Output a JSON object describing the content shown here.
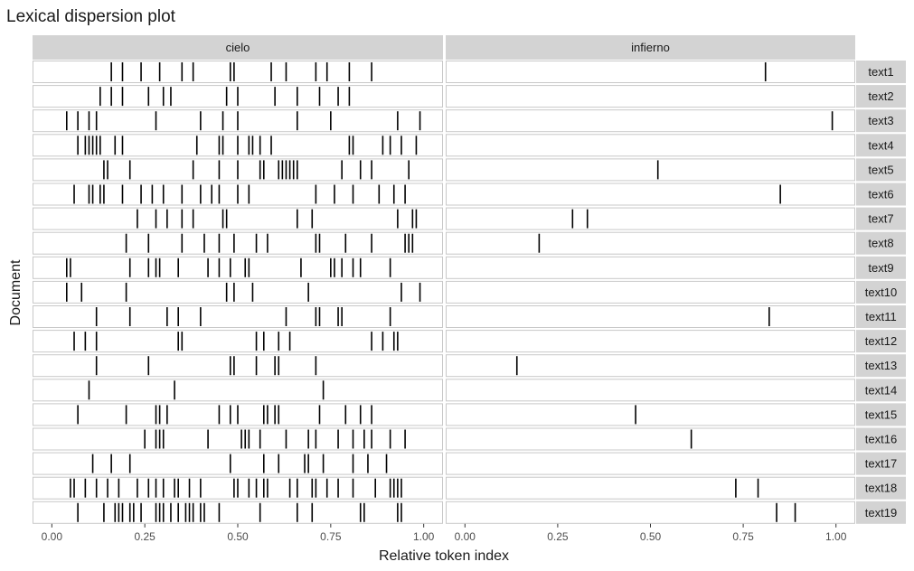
{
  "chart_data": {
    "type": "lexical-dispersion",
    "title": "Lexical dispersion plot",
    "xlabel": "Relative token index",
    "ylabel": "Document",
    "xlim": [
      0,
      1
    ],
    "x_ticks": [
      "0.00",
      "0.25",
      "0.50",
      "0.75",
      "1.00"
    ],
    "x_tick_values": [
      0,
      0.25,
      0.5,
      0.75,
      1.0
    ],
    "grid": true,
    "strip_fill": "#d3d3d3",
    "mark_color": "#000000",
    "facets": [
      "cielo",
      "infierno"
    ],
    "documents": [
      "text1",
      "text2",
      "text3",
      "text4",
      "text5",
      "text6",
      "text7",
      "text8",
      "text9",
      "text10",
      "text11",
      "text12",
      "text13",
      "text14",
      "text15",
      "text16",
      "text17",
      "text18",
      "text19"
    ],
    "positions": {
      "cielo": [
        [
          0.16,
          0.19,
          0.24,
          0.29,
          0.35,
          0.38,
          0.48,
          0.49,
          0.59,
          0.63,
          0.71,
          0.74,
          0.8,
          0.86
        ],
        [
          0.13,
          0.16,
          0.19,
          0.26,
          0.3,
          0.32,
          0.47,
          0.5,
          0.6,
          0.66,
          0.72,
          0.77,
          0.8
        ],
        [
          0.04,
          0.07,
          0.1,
          0.12,
          0.28,
          0.4,
          0.46,
          0.5,
          0.66,
          0.75,
          0.93,
          0.99
        ],
        [
          0.07,
          0.09,
          0.1,
          0.11,
          0.12,
          0.13,
          0.17,
          0.19,
          0.39,
          0.45,
          0.46,
          0.5,
          0.53,
          0.54,
          0.56,
          0.59,
          0.8,
          0.81,
          0.89,
          0.91,
          0.94,
          0.98
        ],
        [
          0.14,
          0.15,
          0.21,
          0.38,
          0.45,
          0.5,
          0.56,
          0.57,
          0.61,
          0.62,
          0.63,
          0.64,
          0.65,
          0.66,
          0.78,
          0.83,
          0.86,
          0.96
        ],
        [
          0.06,
          0.1,
          0.11,
          0.13,
          0.14,
          0.19,
          0.24,
          0.27,
          0.3,
          0.35,
          0.4,
          0.43,
          0.45,
          0.5,
          0.53,
          0.71,
          0.76,
          0.81,
          0.88,
          0.92,
          0.95
        ],
        [
          0.23,
          0.28,
          0.31,
          0.35,
          0.38,
          0.46,
          0.47,
          0.66,
          0.7,
          0.93,
          0.97,
          0.98
        ],
        [
          0.2,
          0.26,
          0.35,
          0.41,
          0.45,
          0.49,
          0.55,
          0.58,
          0.71,
          0.72,
          0.79,
          0.86,
          0.95,
          0.96,
          0.97
        ],
        [
          0.04,
          0.05,
          0.21,
          0.26,
          0.28,
          0.29,
          0.34,
          0.42,
          0.45,
          0.48,
          0.52,
          0.53,
          0.67,
          0.75,
          0.76,
          0.78,
          0.81,
          0.83,
          0.91
        ],
        [
          0.04,
          0.08,
          0.2,
          0.47,
          0.49,
          0.54,
          0.69,
          0.94,
          0.99
        ],
        [
          0.12,
          0.21,
          0.31,
          0.34,
          0.4,
          0.63,
          0.71,
          0.72,
          0.77,
          0.78,
          0.91
        ],
        [
          0.06,
          0.09,
          0.12,
          0.34,
          0.35,
          0.55,
          0.57,
          0.61,
          0.64,
          0.86,
          0.89,
          0.92,
          0.93
        ],
        [
          0.12,
          0.26,
          0.48,
          0.49,
          0.55,
          0.6,
          0.61,
          0.71
        ],
        [
          0.1,
          0.33,
          0.73
        ],
        [
          0.07,
          0.2,
          0.28,
          0.29,
          0.31,
          0.45,
          0.48,
          0.5,
          0.57,
          0.58,
          0.6,
          0.61,
          0.72,
          0.79,
          0.83,
          0.86
        ],
        [
          0.25,
          0.28,
          0.29,
          0.3,
          0.42,
          0.51,
          0.52,
          0.53,
          0.56,
          0.63,
          0.69,
          0.71,
          0.77,
          0.81,
          0.84,
          0.86,
          0.91,
          0.95
        ],
        [
          0.11,
          0.16,
          0.21,
          0.48,
          0.57,
          0.61,
          0.68,
          0.69,
          0.73,
          0.81,
          0.85,
          0.9
        ],
        [
          0.05,
          0.06,
          0.09,
          0.12,
          0.15,
          0.18,
          0.23,
          0.26,
          0.28,
          0.3,
          0.33,
          0.34,
          0.37,
          0.4,
          0.49,
          0.5,
          0.53,
          0.55,
          0.57,
          0.58,
          0.64,
          0.66,
          0.7,
          0.71,
          0.74,
          0.77,
          0.81,
          0.87,
          0.91,
          0.92,
          0.93,
          0.94
        ],
        [
          0.07,
          0.14,
          0.17,
          0.18,
          0.19,
          0.21,
          0.22,
          0.24,
          0.28,
          0.29,
          0.3,
          0.32,
          0.34,
          0.36,
          0.37,
          0.38,
          0.4,
          0.41,
          0.45,
          0.56,
          0.66,
          0.7,
          0.83,
          0.84,
          0.93,
          0.94
        ]
      ],
      "infierno": [
        [
          0.81
        ],
        [],
        [
          0.99
        ],
        [],
        [
          0.52
        ],
        [
          0.85
        ],
        [
          0.29,
          0.33
        ],
        [
          0.2
        ],
        [],
        [],
        [
          0.82
        ],
        [],
        [
          0.14
        ],
        [],
        [
          0.46
        ],
        [
          0.61
        ],
        [],
        [
          0.73,
          0.79
        ],
        [
          0.84,
          0.89
        ]
      ]
    }
  }
}
